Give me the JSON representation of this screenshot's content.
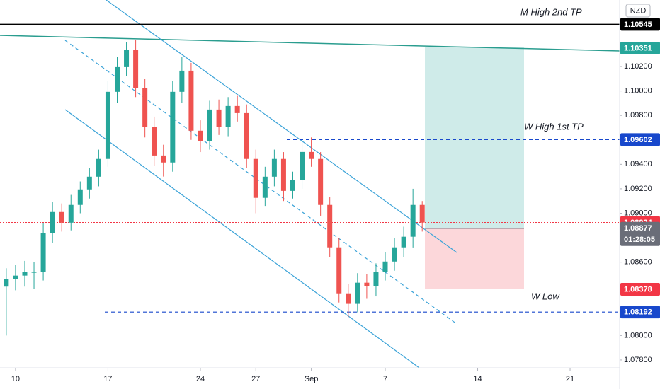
{
  "chart_data": {
    "type": "candlestick",
    "currency": "NZD",
    "x": [
      -0.5,
      0,
      0.5,
      1,
      1.5,
      2,
      2.5,
      3,
      3.5,
      4,
      4.5,
      5,
      5.5,
      6,
      6.5,
      7,
      7.5,
      8,
      8.5,
      9,
      9.5,
      10,
      10.5,
      11,
      11.5,
      12,
      12.5,
      13,
      13.5,
      14,
      14.5,
      15,
      15.5,
      16,
      16.5,
      17,
      17.5,
      18,
      18.5,
      19,
      19.5,
      20,
      20.5,
      21,
      21.5,
      22
    ],
    "open": [
      1.084,
      1.08461,
      1.0849,
      1.08519,
      1.08519,
      1.08837,
      1.0901,
      1.08923,
      1.09068,
      1.09195,
      1.09299,
      1.09444,
      1.09993,
      1.10195,
      1.10339,
      1.10022,
      1.09704,
      1.09472,
      1.09415,
      1.09993,
      1.10166,
      1.09675,
      1.09588,
      1.09848,
      1.09704,
      1.09877,
      1.09819,
      1.09444,
      1.09126,
      1.09299,
      1.09444,
      1.09183,
      1.0927,
      1.09501,
      1.09444,
      1.09068,
      1.08721,
      1.08345,
      1.08259,
      1.08432,
      1.08403,
      1.08519,
      1.08605,
      1.08721,
      1.08808,
      1.09068
    ],
    "high": [
      1.0855,
      1.0858,
      1.0861,
      1.086,
      1.0892,
      1.0909,
      1.0908,
      1.0915,
      1.0926,
      1.0937,
      1.0952,
      1.1008,
      1.1028,
      1.104,
      1.1042,
      1.101,
      1.0979,
      1.0956,
      1.1008,
      1.1028,
      1.1023,
      1.0976,
      1.0992,
      1.0993,
      1.0995,
      1.0996,
      1.0989,
      1.0952,
      1.0938,
      1.0952,
      1.095,
      1.0934,
      1.0958,
      1.0962,
      1.095,
      1.0913,
      1.088,
      1.0842,
      1.0851,
      1.085,
      1.0859,
      1.0868,
      1.088,
      1.0889,
      1.092,
      1.091
    ],
    "low": [
      1.08,
      1.0837,
      1.084,
      1.0838,
      1.0845,
      1.0876,
      1.0885,
      1.0886,
      1.09,
      1.0912,
      1.0922,
      1.0938,
      1.099,
      1.1012,
      1.0995,
      1.0962,
      1.0939,
      1.093,
      1.0934,
      1.099,
      1.096,
      1.095,
      1.0952,
      1.0964,
      1.0963,
      1.0975,
      1.0937,
      1.09,
      1.0906,
      1.0922,
      1.091,
      1.0912,
      1.092,
      1.0938,
      1.0898,
      1.0864,
      1.0827,
      1.0815,
      1.0819,
      1.083,
      1.0832,
      1.0845,
      1.0853,
      1.0864,
      1.0872,
      1.0885
    ],
    "close": [
      1.08461,
      1.0849,
      1.08519,
      1.08519,
      1.08837,
      1.0901,
      1.08923,
      1.09068,
      1.09195,
      1.09299,
      1.09444,
      1.09993,
      1.10195,
      1.10339,
      1.10022,
      1.09704,
      1.09472,
      1.09415,
      1.09993,
      1.10166,
      1.09675,
      1.09588,
      1.09848,
      1.09704,
      1.09877,
      1.09819,
      1.09444,
      1.09126,
      1.09299,
      1.09444,
      1.09183,
      1.0927,
      1.09501,
      1.09444,
      1.09068,
      1.08721,
      1.08345,
      1.08259,
      1.08432,
      1.08403,
      1.08519,
      1.08605,
      1.08721,
      1.08808,
      1.09068,
      1.08924
    ],
    "up_color": "#26a69a",
    "down_color": "#ef5350",
    "xlim": [
      -0.84,
      32.68
    ],
    "xticks": [
      {
        "value": 0,
        "label": "10"
      },
      {
        "value": 5,
        "label": "17"
      },
      {
        "value": 10,
        "label": "24"
      },
      {
        "value": 13,
        "label": "27"
      },
      {
        "value": 16,
        "label": "Sep"
      },
      {
        "value": 20,
        "label": "7"
      },
      {
        "value": 25,
        "label": "14"
      },
      {
        "value": 30,
        "label": "21"
      }
    ],
    "ylim": [
      1.07736,
      1.10744
    ],
    "yticks": [
      {
        "value": 1.102,
        "label": "1.10200"
      },
      {
        "value": 1.1,
        "label": "1.10000"
      },
      {
        "value": 1.098,
        "label": "1.09800"
      },
      {
        "value": 1.094,
        "label": "1.09400"
      },
      {
        "value": 1.092,
        "label": "1.09200"
      },
      {
        "value": 1.09,
        "label": "1.09000"
      },
      {
        "value": 1.086,
        "label": "1.08600"
      },
      {
        "value": 1.08,
        "label": "1.08000"
      },
      {
        "value": 1.078,
        "label": "1.07800"
      }
    ],
    "levels": [
      {
        "value": 1.10545,
        "color": "#000000",
        "line": "solid",
        "annotation": "M High 2nd TP"
      },
      {
        "value": 1.10351,
        "color": "#26a69a",
        "line": "none"
      },
      {
        "value": 1.09602,
        "color": "#1848cc",
        "line": "dashed",
        "annotation": "W High 1st TP"
      },
      {
        "value": 1.08924,
        "color": "#f23645",
        "line": "dotted"
      },
      {
        "value": 1.08877,
        "color": "#6a6d78",
        "line": "none",
        "countdown": "01:28:05"
      },
      {
        "value": 1.08378,
        "color": "#f23645",
        "line": "none"
      },
      {
        "value": 1.08192,
        "color": "#1848cc",
        "line": "dashed",
        "annotation": "W Low"
      }
    ]
  }
}
